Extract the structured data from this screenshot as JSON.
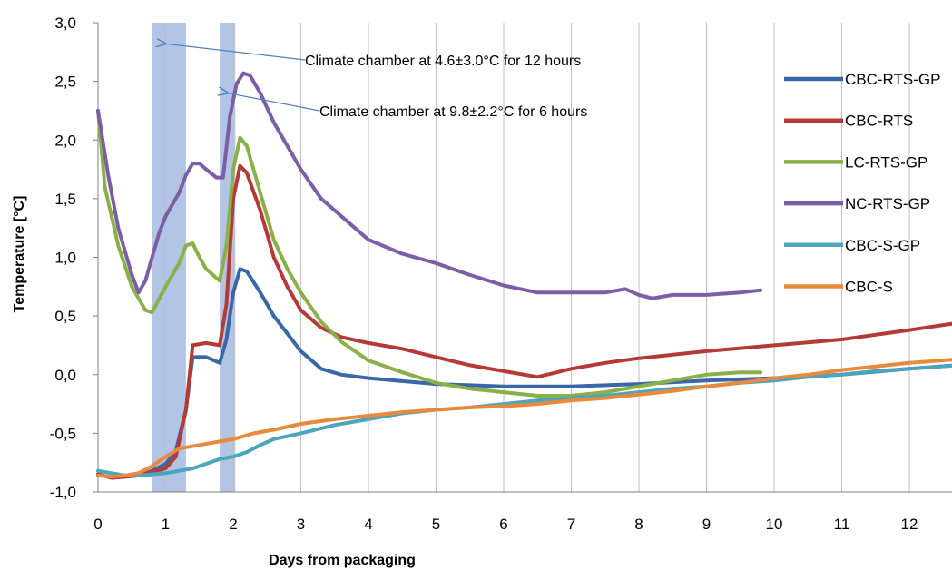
{
  "chart_data": {
    "type": "line",
    "xlabel": "Days from packaging",
    "ylabel": "Temperature [°C]",
    "xlim": [
      0,
      12.7
    ],
    "ylim": [
      -1.0,
      3.0
    ],
    "xticks": [
      "0",
      "1",
      "2",
      "3",
      "4",
      "5",
      "6",
      "7",
      "8",
      "9",
      "10",
      "11",
      "12"
    ],
    "yticks": [
      "-1,0",
      "-0,5",
      "0,0",
      "0,5",
      "1,0",
      "1,5",
      "2,0",
      "2,5",
      "3,0"
    ],
    "grid": "vertical",
    "legend_position": "right",
    "shaded_regions": [
      {
        "x0": 0.8,
        "x1": 1.3,
        "color": "#7f9fd3"
      },
      {
        "x0": 1.8,
        "x1": 2.03,
        "color": "#7f9fd3"
      }
    ],
    "annotations": [
      {
        "text": "Climate chamber at 4.6±3.0°C for 12 hours",
        "point_to": [
          1.0,
          2.82
        ]
      },
      {
        "text": "Climate chamber at 9.8±2.2°C for 6 hours",
        "point_to": [
          1.92,
          2.4
        ]
      }
    ],
    "series": [
      {
        "name": "CBC-RTS-GP",
        "color": "#3a67a8",
        "x": [
          0,
          0.2,
          0.4,
          0.6,
          0.8,
          1.0,
          1.15,
          1.3,
          1.4,
          1.6,
          1.8,
          1.9,
          2.0,
          2.1,
          2.2,
          2.4,
          2.6,
          2.8,
          3.0,
          3.3,
          3.6,
          4.0,
          5.0,
          6.0,
          6.5,
          7.0,
          8.0,
          9.0,
          10.0,
          11.0,
          12.0,
          12.7
        ],
        "y": [
          -0.85,
          -0.88,
          -0.87,
          -0.86,
          -0.82,
          -0.76,
          -0.65,
          -0.3,
          0.15,
          0.15,
          0.1,
          0.3,
          0.7,
          0.9,
          0.88,
          0.7,
          0.5,
          0.35,
          0.2,
          0.05,
          0.0,
          -0.03,
          -0.08,
          -0.1,
          -0.1,
          -0.1,
          -0.08,
          -0.05,
          -0.03,
          0.0,
          0.05,
          0.08
        ]
      },
      {
        "name": "CBC-RTS",
        "color": "#b43b35",
        "x": [
          0,
          0.2,
          0.4,
          0.6,
          0.8,
          1.0,
          1.15,
          1.3,
          1.4,
          1.6,
          1.8,
          1.9,
          2.0,
          2.1,
          2.2,
          2.4,
          2.6,
          2.8,
          3.0,
          3.3,
          3.6,
          4.0,
          4.5,
          5.0,
          5.5,
          6.0,
          6.5,
          7.0,
          7.5,
          8.0,
          9.0,
          10.0,
          11.0,
          12.0,
          12.7
        ],
        "y": [
          -0.85,
          -0.88,
          -0.87,
          -0.86,
          -0.83,
          -0.8,
          -0.7,
          -0.3,
          0.25,
          0.27,
          0.25,
          0.6,
          1.5,
          1.78,
          1.72,
          1.4,
          1.0,
          0.75,
          0.55,
          0.4,
          0.32,
          0.27,
          0.22,
          0.15,
          0.08,
          0.03,
          -0.02,
          0.05,
          0.1,
          0.14,
          0.2,
          0.25,
          0.3,
          0.38,
          0.44
        ]
      },
      {
        "name": "LC-RTS-GP",
        "color": "#8bb04a",
        "x": [
          0,
          0.1,
          0.3,
          0.5,
          0.7,
          0.8,
          1.0,
          1.2,
          1.3,
          1.4,
          1.5,
          1.6,
          1.8,
          1.9,
          2.0,
          2.1,
          2.2,
          2.4,
          2.6,
          2.8,
          3.0,
          3.3,
          3.6,
          4.0,
          4.5,
          5.0,
          5.5,
          6.0,
          6.5,
          7.0,
          7.5,
          8.0,
          8.5,
          9.0,
          9.5,
          9.8
        ],
        "y": [
          2.25,
          1.6,
          1.1,
          0.75,
          0.55,
          0.53,
          0.75,
          0.95,
          1.1,
          1.12,
          1.0,
          0.9,
          0.8,
          1.1,
          1.75,
          2.02,
          1.95,
          1.55,
          1.15,
          0.9,
          0.7,
          0.45,
          0.28,
          0.12,
          0.02,
          -0.07,
          -0.12,
          -0.15,
          -0.18,
          -0.18,
          -0.15,
          -0.1,
          -0.05,
          0.0,
          0.02,
          0.02
        ]
      },
      {
        "name": "NC-RTS-GP",
        "color": "#7b5ea7",
        "x": [
          0,
          0.15,
          0.3,
          0.5,
          0.6,
          0.7,
          0.8,
          0.9,
          1.0,
          1.2,
          1.3,
          1.4,
          1.5,
          1.6,
          1.75,
          1.85,
          1.95,
          2.05,
          2.15,
          2.25,
          2.4,
          2.6,
          2.8,
          3.0,
          3.3,
          3.6,
          4.0,
          4.5,
          5.0,
          5.5,
          6.0,
          6.5,
          7.0,
          7.5,
          7.8,
          8.0,
          8.2,
          8.5,
          9.0,
          9.5,
          9.8
        ],
        "y": [
          2.25,
          1.7,
          1.25,
          0.85,
          0.7,
          0.8,
          1.0,
          1.2,
          1.35,
          1.55,
          1.7,
          1.8,
          1.8,
          1.75,
          1.68,
          1.68,
          2.2,
          2.48,
          2.57,
          2.55,
          2.4,
          2.15,
          1.95,
          1.75,
          1.5,
          1.35,
          1.15,
          1.03,
          0.95,
          0.85,
          0.76,
          0.7,
          0.7,
          0.7,
          0.73,
          0.68,
          0.65,
          0.68,
          0.68,
          0.7,
          0.72
        ]
      },
      {
        "name": "CBC-S-GP",
        "color": "#4aa5bd",
        "x": [
          0,
          0.2,
          0.4,
          0.6,
          0.8,
          1.0,
          1.2,
          1.4,
          1.6,
          1.8,
          2.0,
          2.2,
          2.4,
          2.6,
          3.0,
          3.5,
          4.0,
          4.5,
          5.0,
          5.5,
          6.0,
          6.5,
          7.0,
          7.5,
          8.0,
          8.5,
          9.0,
          9.5,
          10.0,
          10.5,
          11.0,
          11.5,
          12.0,
          12.7
        ],
        "y": [
          -0.82,
          -0.84,
          -0.86,
          -0.86,
          -0.85,
          -0.84,
          -0.82,
          -0.8,
          -0.76,
          -0.72,
          -0.7,
          -0.66,
          -0.6,
          -0.55,
          -0.5,
          -0.43,
          -0.38,
          -0.33,
          -0.3,
          -0.28,
          -0.25,
          -0.22,
          -0.2,
          -0.18,
          -0.15,
          -0.12,
          -0.1,
          -0.07,
          -0.05,
          -0.02,
          0.0,
          0.03,
          0.05,
          0.08
        ]
      },
      {
        "name": "CBC-S",
        "color": "#e88a3c",
        "x": [
          0,
          0.2,
          0.4,
          0.6,
          0.8,
          1.0,
          1.2,
          1.5,
          1.8,
          2.0,
          2.3,
          2.6,
          3.0,
          3.5,
          4.0,
          4.5,
          5.0,
          5.5,
          6.0,
          6.5,
          7.0,
          7.5,
          8.0,
          8.5,
          9.0,
          9.5,
          10.0,
          10.5,
          11.0,
          11.5,
          12.0,
          12.7
        ],
        "y": [
          -0.86,
          -0.87,
          -0.86,
          -0.84,
          -0.78,
          -0.7,
          -0.63,
          -0.6,
          -0.57,
          -0.55,
          -0.5,
          -0.47,
          -0.42,
          -0.38,
          -0.35,
          -0.32,
          -0.3,
          -0.28,
          -0.27,
          -0.25,
          -0.22,
          -0.2,
          -0.17,
          -0.14,
          -0.1,
          -0.07,
          -0.03,
          0.0,
          0.04,
          0.07,
          0.1,
          0.13
        ]
      }
    ]
  }
}
